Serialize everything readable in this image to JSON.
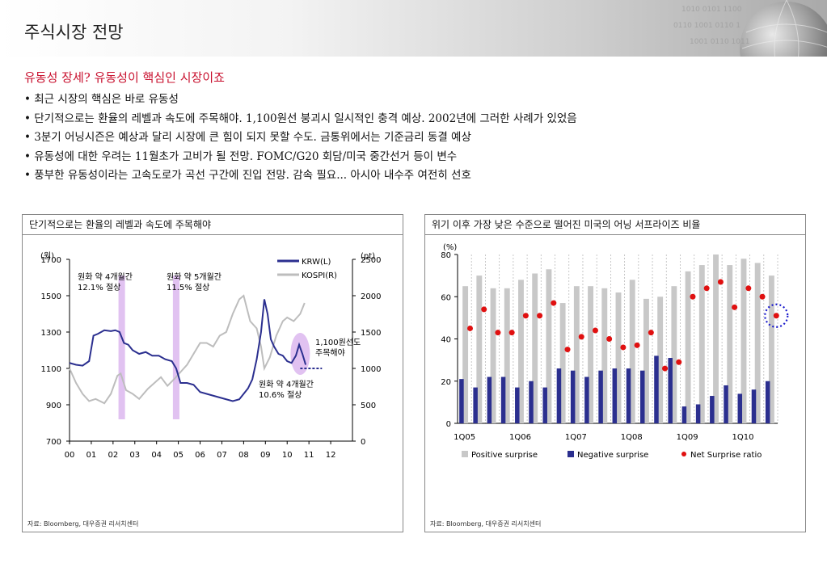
{
  "page": {
    "title": "주식시장 전망",
    "subtitle": "유동성 장세? 유동성이 핵심인 시장이죠",
    "bullets": [
      "최근 시장의 핵심은 바로 유동성",
      "단기적으로는 환율의 레벨과 속도에 주목해야. 1,100원선 붕괴시 일시적인 충격 예상. 2002년에 그러한 사례가 있었음",
      "3분기 어닝시즌은 예상과 달리 시장에 큰 힘이 되지 못할 수도. 금통위에서는 기준금리 동결 예상",
      "유동성에 대한 우려는 11월초가 고비가 될 전망. FOMC/G20 회담/미국 중간선거 등이 변수",
      "풍부한 유동성이라는 고속도로가 곡선 구간에 진입 전망. 감속 필요... 아시아 내수주 여전히 선호"
    ]
  },
  "chart_data": [
    {
      "type": "line",
      "title": "단기적으로는 환율의 레벨과 속도에 주목해야",
      "y_left_unit": "(원)",
      "y_right_unit": "(pt)",
      "x_ticks": [
        "00",
        "01",
        "02",
        "03",
        "04",
        "05",
        "06",
        "07",
        "08",
        "09",
        "10",
        "11",
        "12"
      ],
      "y_left_ticks": [
        700,
        900,
        1100,
        1300,
        1500,
        1700
      ],
      "y_right_ticks": [
        0,
        500,
        1000,
        1500,
        2000,
        2500
      ],
      "ylim_left": [
        700,
        1700
      ],
      "ylim_right": [
        0,
        2500
      ],
      "xlim": [
        2000,
        2013
      ],
      "legend": [
        "KRW(L)",
        "KOSPI(R)"
      ],
      "series": [
        {
          "name": "KRW(L)",
          "axis": "left",
          "color": "#2b2f8f",
          "x": [
            2000.0,
            2000.3,
            2000.6,
            2000.9,
            2001.1,
            2001.3,
            2001.6,
            2001.9,
            2002.1,
            2002.3,
            2002.5,
            2002.7,
            2002.9,
            2003.2,
            2003.5,
            2003.8,
            2004.1,
            2004.4,
            2004.7,
            2004.9,
            2005.1,
            2005.4,
            2005.7,
            2006.0,
            2006.3,
            2006.6,
            2006.9,
            2007.2,
            2007.5,
            2007.8,
            2008.0,
            2008.2,
            2008.4,
            2008.6,
            2008.8,
            2008.95,
            2009.1,
            2009.25,
            2009.4,
            2009.6,
            2009.8,
            2010.0,
            2010.2,
            2010.4,
            2010.55,
            2010.7,
            2010.85
          ],
          "values": [
            1130,
            1120,
            1115,
            1140,
            1280,
            1290,
            1310,
            1305,
            1310,
            1300,
            1240,
            1230,
            1200,
            1180,
            1190,
            1170,
            1170,
            1150,
            1140,
            1100,
            1020,
            1020,
            1010,
            970,
            960,
            950,
            940,
            930,
            920,
            930,
            960,
            990,
            1040,
            1150,
            1300,
            1480,
            1400,
            1260,
            1220,
            1180,
            1170,
            1140,
            1130,
            1170,
            1230,
            1180,
            1120
          ]
        },
        {
          "name": "KOSPI(R)",
          "axis": "right",
          "color": "#bdbdbd",
          "x": [
            2000.0,
            2000.3,
            2000.6,
            2000.9,
            2001.2,
            2001.6,
            2001.9,
            2002.2,
            2002.35,
            2002.6,
            2002.9,
            2003.2,
            2003.6,
            2003.9,
            2004.2,
            2004.5,
            2004.8,
            2005.1,
            2005.4,
            2005.7,
            2006.0,
            2006.3,
            2006.6,
            2006.9,
            2007.2,
            2007.5,
            2007.8,
            2008.0,
            2008.3,
            2008.6,
            2008.8,
            2008.95,
            2009.2,
            2009.5,
            2009.8,
            2010.0,
            2010.3,
            2010.6,
            2010.8
          ],
          "values": [
            1000,
            800,
            650,
            550,
            580,
            520,
            650,
            900,
            930,
            700,
            650,
            580,
            720,
            800,
            880,
            760,
            850,
            950,
            1050,
            1200,
            1350,
            1350,
            1300,
            1450,
            1500,
            1750,
            1950,
            2000,
            1650,
            1550,
            1300,
            1000,
            1150,
            1450,
            1650,
            1700,
            1650,
            1750,
            1900
          ]
        }
      ],
      "highlight_periods_label": [
        "원화 약 4개월간 12.1% 절상",
        "원화 약 5개월간 11.5% 절상",
        "원화 약 4개월간 10.6% 절상"
      ],
      "annotations": {
        "a1_line1": "원화 약 4개월간",
        "a1_line2": "12.1% 절상",
        "a2_line1": "원화 약 5개월간",
        "a2_line2": "11.5% 절상",
        "a3_line1": "원화 약 4개월간",
        "a3_line2": "10.6% 절상",
        "a4_line1": "1,100원선도",
        "a4_line2": "주목해야"
      },
      "source": "자료: Bloomberg, 대우증권 리서치센터"
    },
    {
      "type": "bar",
      "title": "위기 이후 가장 낮은 수준으로 떨어진 미국의 어닝 서프라이즈 비율",
      "y_unit": "(%)",
      "ylim": [
        0,
        80
      ],
      "y_ticks": [
        0,
        20,
        40,
        60,
        80
      ],
      "x_tick_labels": [
        "1Q05",
        "1Q06",
        "1Q07",
        "1Q08",
        "1Q09",
        "1Q10"
      ],
      "categories": [
        "1Q05",
        "2Q05",
        "3Q05",
        "4Q05",
        "1Q06",
        "2Q06",
        "3Q06",
        "4Q06",
        "1Q07",
        "2Q07",
        "3Q07",
        "4Q07",
        "1Q08",
        "2Q08",
        "3Q08",
        "4Q08",
        "1Q09",
        "2Q09",
        "3Q09",
        "4Q09",
        "1Q10",
        "2Q10",
        "3Q10"
      ],
      "series": [
        {
          "name": "Positive surprise",
          "color": "#c8c8c8",
          "values": [
            65,
            70,
            64,
            64,
            68,
            71,
            73,
            57,
            65,
            65,
            64,
            62,
            68,
            59,
            60,
            65,
            72,
            75,
            80,
            75,
            78,
            76,
            70
          ]
        },
        {
          "name": "Negative surprise",
          "color": "#2b2f8f",
          "values": [
            21,
            17,
            22,
            22,
            17,
            20,
            17,
            26,
            25,
            22,
            25,
            26,
            26,
            25,
            32,
            31,
            8,
            9,
            13,
            18,
            14,
            16,
            20
          ]
        },
        {
          "name": "Net Surprise ratio",
          "color": "#e01010",
          "values": [
            45,
            54,
            43,
            43,
            51,
            51,
            57,
            35,
            41,
            44,
            40,
            36,
            37,
            43,
            26,
            29,
            60,
            64,
            67,
            55,
            64,
            60,
            51
          ]
        }
      ],
      "legend": [
        "Positive surprise",
        "Negative surprise",
        "Net Surprise ratio"
      ],
      "source": "자료: Bloomberg, 대우증권 리서치센터"
    }
  ],
  "colors": {
    "accent_red": "#c8102e",
    "krw": "#2b2f8f",
    "kospi": "#bdbdbd",
    "highlight": "#d9b3ee",
    "circle": "#1a1acc"
  }
}
